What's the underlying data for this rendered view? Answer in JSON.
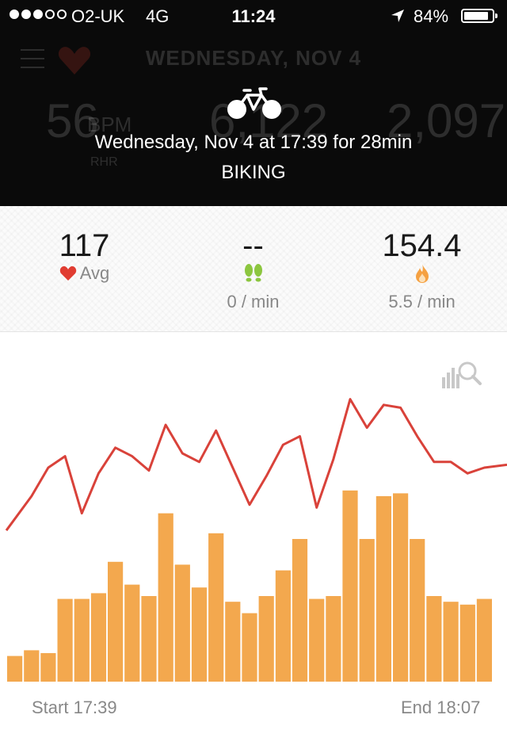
{
  "status_bar": {
    "carrier": "O2-UK",
    "network": "4G",
    "time": "11:24",
    "battery_percent": "84%",
    "signal_bars": 3,
    "signal_total": 5
  },
  "background": {
    "day_title": "WEDNESDAY, NOV 4",
    "stat_1": "56",
    "stat_1_unit": "BPM",
    "stat_1_label": "RHR",
    "stat_2": "6,122",
    "stat_3": "2,097"
  },
  "activity": {
    "icon": "bicycle-icon",
    "date_line": "Wednesday, Nov 4 at 17:39 for 28min",
    "type": "BIKING"
  },
  "stats": {
    "heart": {
      "value": "117",
      "label": "Avg",
      "icon": "heart-icon"
    },
    "steps": {
      "value": "--",
      "rate": "0 / min",
      "icon": "footsteps-icon"
    },
    "calories": {
      "value": "154.4",
      "rate": "5.5 / min",
      "icon": "flame-icon"
    }
  },
  "colors": {
    "heart_red": "#e03c31",
    "steps_green": "#8cc63f",
    "flame_orange": "#f5a142",
    "line_red": "#d9423a",
    "bar_orange": "#f3a84e"
  },
  "chart_data": {
    "type": "bar",
    "x_start_label": "Start 17:39",
    "x_end_label": "End 18:07",
    "ylim": [
      0,
      100
    ],
    "series": [
      {
        "type": "bar",
        "values": [
          9,
          11,
          10,
          29,
          29,
          31,
          42,
          34,
          30,
          59,
          41,
          33,
          52,
          28,
          24,
          30,
          39,
          50,
          29,
          30,
          67,
          50,
          65,
          66,
          50,
          30,
          28,
          27,
          29
        ]
      },
      {
        "type": "line",
        "values": [
          53,
          65,
          75,
          79,
          59,
          73,
          82,
          79,
          74,
          90,
          80,
          77,
          88,
          75,
          62,
          72,
          83,
          86,
          61,
          78,
          99,
          89,
          97,
          96,
          86,
          77,
          77,
          73,
          75
        ]
      }
    ]
  }
}
